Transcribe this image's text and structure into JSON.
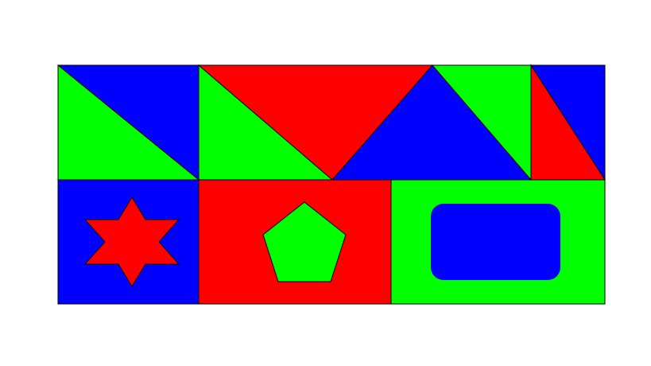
{
  "colors": {
    "background": "#ffffff",
    "red": "#ff0000",
    "green": "#00ff00",
    "blue": "#0000ff",
    "outline": "#000000"
  },
  "tiles": [
    {
      "name": "tile-top-1",
      "fill": "blue"
    },
    {
      "name": "tile-top-2",
      "fill": "red"
    },
    {
      "name": "tile-top-3",
      "fill": "green"
    },
    {
      "name": "tile-top-4",
      "fill": "blue"
    },
    {
      "name": "tile-bottom-1",
      "fill": "blue",
      "shape": "six-point-star",
      "shape_fill": "red"
    },
    {
      "name": "tile-bottom-2",
      "fill": "red",
      "shape": "pentagon",
      "shape_fill": "green"
    },
    {
      "name": "tile-bottom-3",
      "fill": "green",
      "shape": "rounded-rectangle",
      "shape_fill": "blue"
    }
  ]
}
